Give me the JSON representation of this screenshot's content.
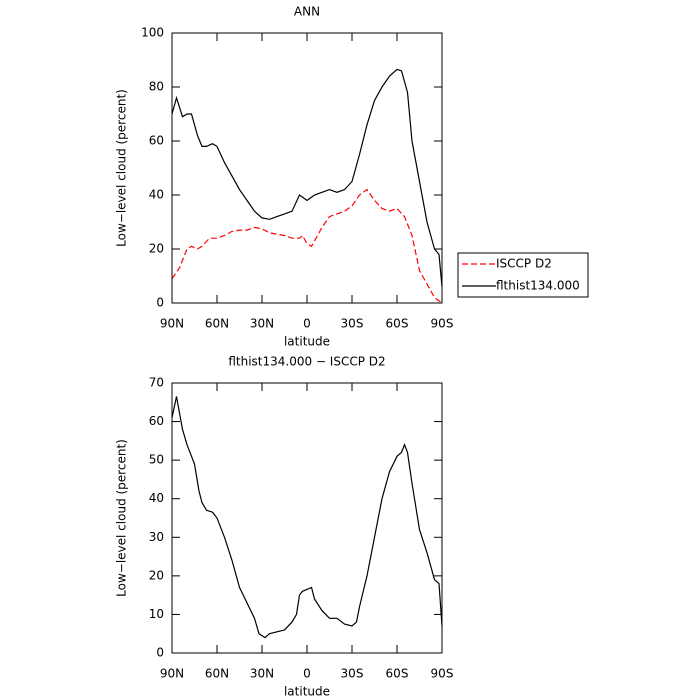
{
  "chart_data": [
    {
      "type": "line",
      "title": "ANN",
      "xlabel": "latitude",
      "ylabel": "Low−level cloud (percent)",
      "xlim": [
        90,
        -90
      ],
      "xticks": [
        {
          "value": 90,
          "label": "90N"
        },
        {
          "value": 60,
          "label": "60N"
        },
        {
          "value": 30,
          "label": "30N"
        },
        0,
        {
          "value": -30,
          "label": "30S"
        },
        {
          "value": -60,
          "label": "60S"
        },
        {
          "value": -90,
          "label": "90S"
        }
      ],
      "ylim": [
        0,
        100
      ],
      "yticks": [
        0,
        20,
        40,
        60,
        80,
        100
      ],
      "legend": "right",
      "series": [
        {
          "name": "ISCCP D2",
          "color": "#ff0000",
          "dash": true,
          "x": [
            90,
            85,
            80,
            77,
            73,
            70,
            65,
            60,
            55,
            50,
            45,
            40,
            35,
            30,
            25,
            20,
            15,
            10,
            5,
            3,
            0,
            -3,
            -5,
            -10,
            -15,
            -20,
            -25,
            -30,
            -35,
            -40,
            -45,
            -50,
            -55,
            -60,
            -65,
            -70,
            -75,
            -80,
            -85,
            -90
          ],
          "values": [
            9,
            13,
            20,
            21,
            20,
            21,
            24,
            24,
            25,
            26.5,
            27,
            27,
            28,
            27.5,
            26,
            25.5,
            25,
            24,
            24,
            25,
            22,
            21,
            23,
            28,
            32,
            33,
            34,
            36,
            40,
            42,
            38,
            35,
            34,
            35,
            32,
            25,
            12,
            7,
            2,
            0
          ]
        },
        {
          "name": "flthist134.000",
          "color": "#000000",
          "dash": false,
          "x": [
            90,
            87,
            83,
            80,
            77,
            73,
            70,
            67,
            63,
            60,
            55,
            50,
            45,
            40,
            35,
            30,
            25,
            20,
            15,
            10,
            5,
            0,
            -5,
            -10,
            -15,
            -20,
            -25,
            -30,
            -35,
            -40,
            -45,
            -50,
            -55,
            -60,
            -63,
            -67,
            -70,
            -75,
            -80,
            -85,
            -88,
            -90
          ],
          "values": [
            70,
            76,
            69,
            70,
            70,
            62,
            58,
            58,
            59,
            58,
            52,
            47,
            42,
            38,
            34,
            31.5,
            31,
            32,
            33,
            34,
            40,
            38,
            40,
            41,
            42,
            41,
            42,
            45,
            55,
            66,
            75,
            80,
            84,
            86.5,
            86,
            78,
            60,
            45,
            30,
            20,
            18,
            6
          ]
        }
      ]
    },
    {
      "type": "line",
      "title": "flthist134.000 − ISCCP D2",
      "xlabel": "latitude",
      "ylabel": "Low−level cloud (percent)",
      "xlim": [
        90,
        -90
      ],
      "xticks": [
        {
          "value": 90,
          "label": "90N"
        },
        {
          "value": 60,
          "label": "60N"
        },
        {
          "value": 30,
          "label": "30N"
        },
        0,
        {
          "value": -30,
          "label": "30S"
        },
        {
          "value": -60,
          "label": "60S"
        },
        {
          "value": -90,
          "label": "90S"
        }
      ],
      "ylim": [
        0,
        70
      ],
      "yticks": [
        0,
        10,
        20,
        30,
        40,
        50,
        60,
        70
      ],
      "series": [
        {
          "color": "#000000",
          "dash": false,
          "x": [
            90,
            87,
            83,
            80,
            75,
            72,
            70,
            67,
            63,
            60,
            55,
            50,
            45,
            40,
            35,
            32,
            30,
            28,
            25,
            20,
            15,
            10,
            7,
            5,
            3,
            0,
            -3,
            -5,
            -10,
            -15,
            -20,
            -25,
            -30,
            -33,
            -35,
            -40,
            -45,
            -50,
            -55,
            -60,
            -63,
            -65,
            -67,
            -70,
            -75,
            -80,
            -85,
            -88,
            -90
          ],
          "values": [
            61,
            66.5,
            58,
            54,
            49,
            42,
            39,
            37,
            36.5,
            35,
            30,
            24,
            17,
            13,
            9,
            5,
            4.5,
            4,
            5,
            5.5,
            6,
            8,
            10,
            15,
            16,
            16.5,
            17,
            14,
            11,
            9,
            9,
            7.5,
            7,
            8,
            12,
            20,
            30,
            40,
            47,
            51,
            52,
            54,
            52,
            44,
            32,
            26,
            19,
            18,
            7
          ]
        }
      ]
    }
  ]
}
